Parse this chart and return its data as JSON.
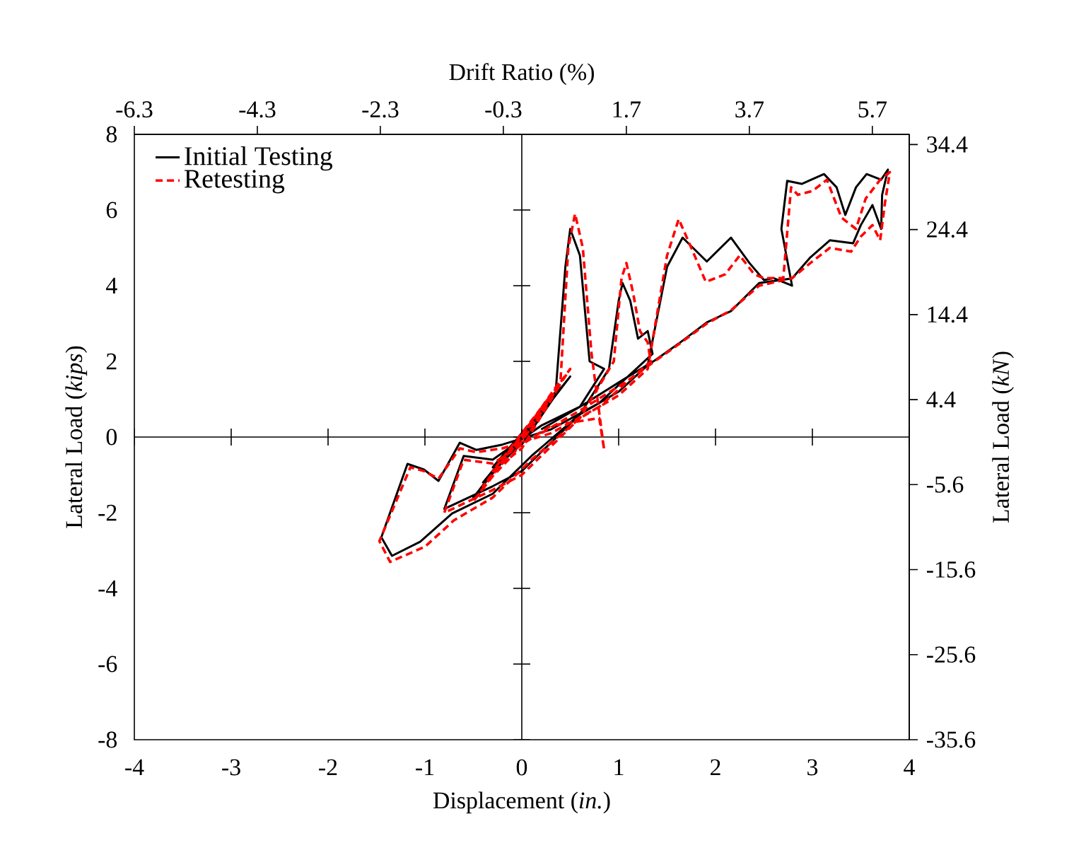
{
  "chart_data": {
    "type": "line",
    "xlabel": "Displacement (*in.*)",
    "ylabel": "Lateral Load (*kips*)",
    "y2label": "Lateral Load (*kN*)",
    "x2label": "Drift  Ratio (%)",
    "xlim": [
      -4,
      4
    ],
    "xticks": [
      -4,
      -3,
      -2,
      -1,
      0,
      1,
      2,
      3,
      4
    ],
    "ylim": [
      -8,
      8
    ],
    "yticks": [
      -8,
      -6,
      -4,
      -2,
      0,
      2,
      4,
      6,
      8
    ],
    "y2lim": [
      -35.6,
      35.6
    ],
    "y2ticks": [
      -35.6,
      -25.6,
      -15.6,
      -5.6,
      4.4,
      14.4,
      24.4,
      34.4
    ],
    "x2lim": [
      -6.3,
      6.3
    ],
    "x2ticks": [
      -6.3,
      -4.3,
      -2.3,
      -0.3,
      1.7,
      3.7,
      5.7
    ],
    "legend": "top left",
    "series": [
      {
        "name": "Initial Testing",
        "color": "#000000",
        "line_style": "solid",
        "x": [
          0,
          0.2,
          -0.2,
          0.1,
          0.3,
          -0.3,
          0.0,
          0.4,
          -0.4,
          -0.1,
          0.5,
          -0.5,
          -0.2,
          0.35,
          0.45,
          0.5,
          0.6,
          0.7,
          0.85,
          0.6,
          0.2,
          -0.3,
          -0.6,
          -0.8,
          -0.3,
          0,
          0.6,
          0.9,
          1.0,
          1.04,
          1.12,
          1.2,
          1.3,
          1.35,
          0.8,
          0.3,
          -0.2,
          -0.47,
          -0.64,
          -0.86,
          -1.01,
          -1.18,
          -1.45,
          -1.34,
          -1.05,
          -0.72,
          -0.3,
          0.1,
          0.6,
          1.0,
          1.3,
          1.5,
          1.66,
          1.91,
          2.16,
          2.35,
          2.5,
          2.6,
          2.79,
          2.68,
          2.74,
          2.89,
          3.12,
          3.25,
          3.34,
          3.45,
          3.56,
          3.71,
          3.78,
          3.72,
          3.71,
          3.62,
          3.5,
          3.42,
          3.18,
          2.98,
          2.79,
          2.45,
          2.16,
          1.91,
          1.62,
          1.37,
          1.1,
          0.6,
          0.2
        ],
        "values": [
          0,
          0.6,
          -0.5,
          0.3,
          1.0,
          -0.8,
          -0.2,
          1.3,
          -1.2,
          -0.4,
          1.6,
          -1.6,
          -0.6,
          1.2,
          4.5,
          5.5,
          4.8,
          2.0,
          1.8,
          0.8,
          0.3,
          -0.6,
          -0.5,
          -1.9,
          -1.3,
          -0.9,
          0.6,
          1.8,
          3.6,
          4.07,
          3.6,
          2.6,
          2.8,
          2.2,
          0.9,
          0.2,
          -0.2,
          -0.34,
          -0.15,
          -1.16,
          -0.86,
          -0.71,
          -2.65,
          -3.14,
          -2.77,
          -2.02,
          -1.5,
          -0.5,
          0.6,
          1.2,
          1.9,
          4.5,
          5.27,
          4.64,
          5.27,
          4.6,
          4.15,
          4.2,
          4.0,
          5.5,
          6.77,
          6.69,
          6.95,
          6.6,
          5.87,
          6.6,
          6.95,
          6.8,
          7.07,
          6.4,
          5.5,
          6.13,
          5.6,
          5.12,
          5.2,
          4.75,
          4.19,
          4.07,
          3.33,
          3.03,
          2.47,
          2.02,
          1.6,
          0.8,
          0.2
        ]
      },
      {
        "name": "Retesting",
        "color": "#ff0000",
        "line_style": "dashed",
        "x": [
          0,
          0.2,
          -0.2,
          0.1,
          0.3,
          -0.3,
          0.0,
          0.4,
          -0.4,
          -0.1,
          0.5,
          -0.5,
          -0.2,
          0.4,
          0.48,
          0.55,
          0.63,
          0.72,
          0.85,
          0.8,
          0.3,
          -0.3,
          -0.6,
          -0.8,
          -0.3,
          0,
          0.6,
          0.95,
          1.03,
          1.08,
          1.15,
          1.22,
          1.3,
          1.33,
          0.8,
          0.3,
          -0.2,
          -0.47,
          -0.64,
          -0.86,
          -1.01,
          -1.15,
          -1.47,
          -1.36,
          -1.0,
          -0.7,
          -0.3,
          0.1,
          0.6,
          1.0,
          1.3,
          1.5,
          1.62,
          1.75,
          1.9,
          2.1,
          2.25,
          2.4,
          2.5,
          2.7,
          2.78,
          2.85,
          3.0,
          3.15,
          3.3,
          3.45,
          3.55,
          3.7,
          3.8,
          3.75,
          3.7,
          3.62,
          3.5,
          3.4,
          3.18,
          2.98,
          2.79,
          2.45,
          2.16,
          1.91,
          1.62,
          1.37,
          1.1,
          0.6,
          0.2
        ],
        "values": [
          0,
          0.7,
          -0.6,
          0.2,
          1.1,
          -0.9,
          -0.3,
          1.4,
          -1.3,
          -0.5,
          1.8,
          -1.7,
          -0.7,
          1.5,
          5.0,
          5.9,
          5.0,
          2.2,
          -0.34,
          0.5,
          0.3,
          -0.7,
          -0.6,
          -2.0,
          -1.4,
          -1.0,
          0.5,
          2.0,
          4.2,
          4.6,
          3.8,
          2.8,
          2.5,
          2.0,
          0.8,
          0.1,
          -0.3,
          -0.4,
          -0.3,
          -1.1,
          -0.9,
          -0.8,
          -2.75,
          -3.3,
          -2.9,
          -2.2,
          -1.6,
          -0.6,
          0.5,
          1.1,
          1.8,
          4.8,
          5.76,
          5.0,
          4.1,
          4.3,
          4.8,
          4.3,
          4.2,
          4.2,
          6.6,
          6.4,
          6.5,
          6.8,
          5.8,
          5.5,
          6.3,
          6.8,
          7.0,
          6.2,
          5.2,
          5.6,
          5.3,
          4.9,
          5.0,
          4.6,
          4.2,
          4.0,
          3.35,
          3.0,
          2.45,
          2.0,
          1.5,
          0.7,
          0.1
        ]
      }
    ]
  }
}
